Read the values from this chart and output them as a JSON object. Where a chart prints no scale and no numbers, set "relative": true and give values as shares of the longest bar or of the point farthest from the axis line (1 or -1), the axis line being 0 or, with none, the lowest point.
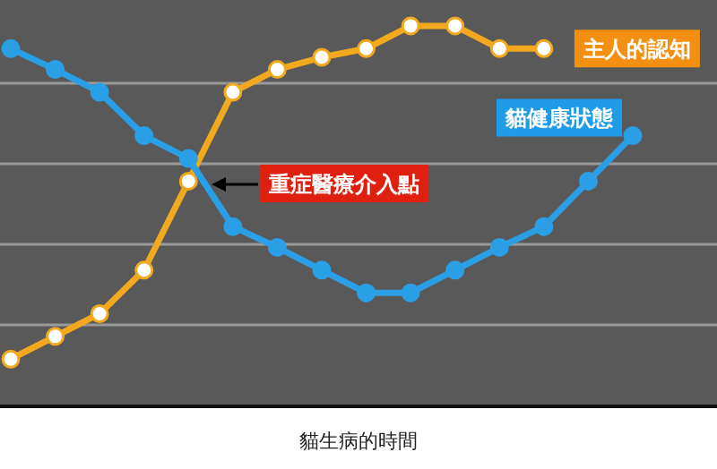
{
  "chart_data": {
    "type": "line",
    "relative": true,
    "xlabel": "貓生病的時間",
    "categories": [
      null,
      null,
      null,
      null,
      null,
      null,
      null,
      null,
      null,
      null,
      null,
      null,
      null,
      null,
      null
    ],
    "series": [
      {
        "name": "貓健康狀態",
        "color": "#2b9fe6",
        "values": [
          0.94,
          0.885,
          0.825,
          0.71,
          0.65,
          0.47,
          0.415,
          0.355,
          0.295,
          0.295,
          0.355,
          0.415,
          0.47,
          0.59,
          0.71
        ]
      },
      {
        "name": "主人的認知",
        "color": "#f2a91d",
        "values": [
          0.12,
          0.18,
          0.24,
          0.355,
          0.59,
          0.825,
          0.885,
          0.917,
          0.94,
          1,
          1,
          0.94,
          0.94,
          null,
          null
        ]
      }
    ],
    "annotations": [
      "重症醫療介入點"
    ],
    "grid": "y",
    "legend": false,
    "marker": "circle"
  }
}
